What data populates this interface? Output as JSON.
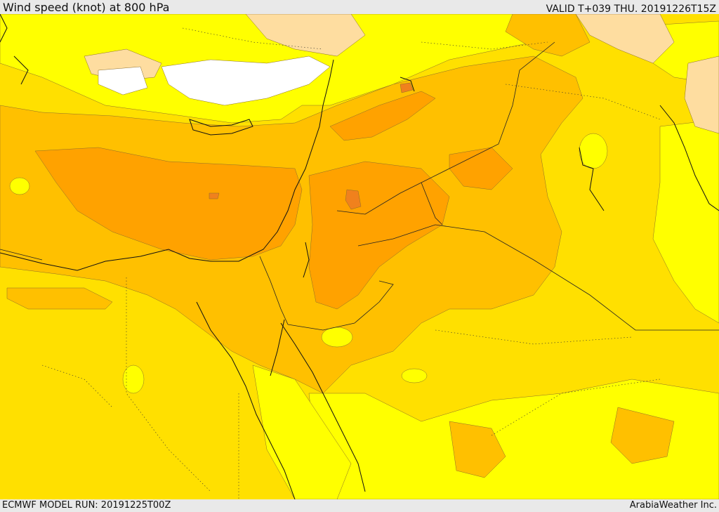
{
  "header": {
    "title": "Wind speed (knot) at 800 hPa",
    "valid": "VALID T+039 THU. 20191226T15Z"
  },
  "footer": {
    "run": "ECMWF MODEL RUN: 20191225T00Z",
    "brand": "ArabiaWeather Inc."
  },
  "palette": {
    "calm_white": "#ffffff",
    "light_peach": "#fedda0",
    "bright_yellow": "#ffff00",
    "yellow": "#ffe000",
    "amber": "#ffc000",
    "orange": "#ffa200",
    "dark_orange": "#f0811d"
  }
}
